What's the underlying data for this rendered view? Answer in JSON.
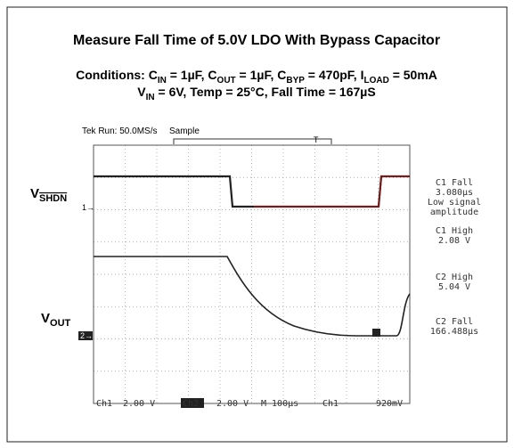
{
  "title": "Measure Fall Time of 5.0V LDO With Bypass Capacitor",
  "conditions": {
    "line1": [
      {
        "t": "Conditions: C",
        "sub": false
      },
      {
        "t": "IN",
        "sub": true
      },
      {
        "t": " = 1µF, C",
        "sub": false
      },
      {
        "t": "OUT",
        "sub": true
      },
      {
        "t": " = 1µF, C",
        "sub": false
      },
      {
        "t": "BYP",
        "sub": true
      },
      {
        "t": " = 470pF, I",
        "sub": false
      },
      {
        "t": "LOAD",
        "sub": true
      },
      {
        "t": " = 50mA",
        "sub": false
      }
    ],
    "line2": [
      {
        "t": "V",
        "sub": false
      },
      {
        "t": "IN",
        "sub": true
      },
      {
        "t": " = 6V, Temp = 25°C, Fall Time = 167µS",
        "sub": false
      }
    ]
  },
  "scope": {
    "header": {
      "run": "Tek Run: 50.0MS/s",
      "mode": "Sample"
    },
    "left": {
      "ch1_label": "V",
      "ch1_sub": "SHDN",
      "ch1_marker": "1→",
      "ch2_label": "V",
      "ch2_sub": "OUT",
      "ch2_marker": "2→"
    },
    "measurements": [
      "C1 Fall",
      "3.080µs",
      "Low signal",
      "amplitude",
      "C1 High",
      "2.08 V",
      "C2 High",
      "5.04 V",
      "C2 Fall",
      "166.488µs"
    ],
    "footer": [
      "Ch1",
      "2.00 V",
      "Ch2",
      "2.00 V",
      "M 100µs",
      "Ch1",
      "920mV"
    ]
  }
}
